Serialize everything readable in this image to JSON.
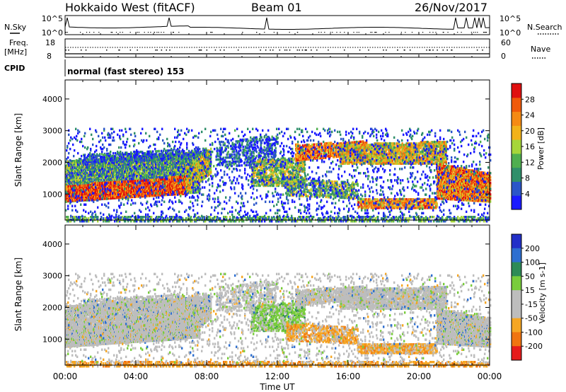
{
  "header": {
    "station": "Hokkaido West (fitACF)",
    "beam": "Beam 01",
    "date": "26/Nov/2017"
  },
  "strip": {
    "nsky_label": "N.Sky",
    "nsearch_label": "N.Search",
    "noise_ticks": [
      "10^5",
      "10^0"
    ],
    "freq_label_1": "Freq.",
    "freq_label_2": "[MHz]",
    "freq_ticks": [
      "18",
      "8"
    ],
    "nave_label": "Nave",
    "nave_ticks": [
      "60",
      "0"
    ],
    "cpid_label": "CPID",
    "cpid_text": "normal (fast stereo) 153"
  },
  "colors": {
    "power_scale": [
      "#1a1aff",
      "#2a55c8",
      "#2f8f6a",
      "#4faf4f",
      "#a6d63a",
      "#f2b21a",
      "#f58a14",
      "#f05a0a",
      "#e01010"
    ],
    "velocity_scale": [
      "#e61b1b",
      "#f07410",
      "#f5a623",
      "#bdbdbd",
      "#bdbdbd",
      "#79cc3c",
      "#2e8b57",
      "#2e6fd0",
      "#2230c8"
    ]
  },
  "chart_data": [
    {
      "type": "heatmap",
      "title": "Power",
      "xlabel": "Time UT",
      "ylabel": "Slant Range [km]",
      "x_ticks": [
        "00:00",
        "04:00",
        "08:00",
        "12:00",
        "16:00",
        "20:00",
        "00:00"
      ],
      "xlim_hours": [
        0,
        24
      ],
      "y_ticks": [
        1000,
        2000,
        3000,
        4000
      ],
      "ylim": [
        180,
        4600
      ],
      "colorbar": {
        "label": "Power [dB]",
        "ticks": [
          4,
          8,
          12,
          16,
          20,
          24,
          28
        ],
        "range": [
          0,
          32
        ]
      }
    },
    {
      "type": "heatmap",
      "title": "Velocity",
      "xlabel": "Time UT",
      "ylabel": "Slant Range [km]",
      "x_ticks": [
        "00:00",
        "04:00",
        "08:00",
        "12:00",
        "16:00",
        "20:00",
        "00:00"
      ],
      "xlim_hours": [
        0,
        24
      ],
      "y_ticks": [
        1000,
        2000,
        3000,
        4000
      ],
      "ylim": [
        180,
        4600
      ],
      "colorbar": {
        "label": "Velocity [m s-1]",
        "ticks": [
          200,
          100,
          50,
          15,
          -15,
          -50,
          -100,
          -200
        ]
      }
    }
  ]
}
